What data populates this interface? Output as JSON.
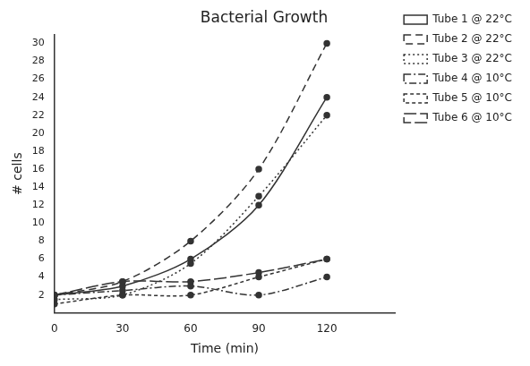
{
  "chart_data": {
    "type": "line",
    "title": "Bacterial Growth",
    "x_label": "Time (min)",
    "y_label": "# cells",
    "x": [
      0,
      30,
      60,
      90,
      120
    ],
    "series": [
      {
        "name": "Tube 1 @ 22°C",
        "color": "#333333",
        "line_style": "solid",
        "marker": "circle",
        "values": [
          2,
          3,
          6,
          12,
          24
        ]
      },
      {
        "name": "Tube 2 @ 22°C",
        "color": "#333333",
        "line_style": "dashed",
        "marker": "circle",
        "values": [
          2,
          3.5,
          8,
          16,
          30
        ]
      },
      {
        "name": "Tube 3 @ 22°C",
        "color": "#333333",
        "line_style": "dotted",
        "marker": "circle",
        "values": [
          1.5,
          2,
          5.5,
          13,
          22
        ]
      },
      {
        "name": "Tube 4 @ 10°C",
        "color": "#333333",
        "line_style": "dashdot",
        "marker": "circle",
        "values": [
          2,
          2.5,
          3,
          2,
          4
        ]
      },
      {
        "name": "Tube 5 @ 10°C",
        "color": "#333333",
        "line_style": "shortdash",
        "marker": "circle",
        "values": [
          1,
          2,
          2,
          4,
          6
        ]
      },
      {
        "name": "Tube 6 @ 10°C",
        "color": "#333333",
        "line_style": "longdash",
        "marker": "circle",
        "values": [
          2,
          3.5,
          3.5,
          4.5,
          6
        ]
      }
    ],
    "xlim": [
      0,
      150
    ],
    "xticks": [
      0,
      30,
      60,
      90,
      120
    ],
    "ylim": [
      0,
      31
    ],
    "yticks": [
      2,
      4,
      6,
      8,
      10,
      12,
      14,
      16,
      18,
      20,
      22,
      24,
      26,
      28,
      30
    ],
    "grid": false,
    "legend": "right"
  }
}
